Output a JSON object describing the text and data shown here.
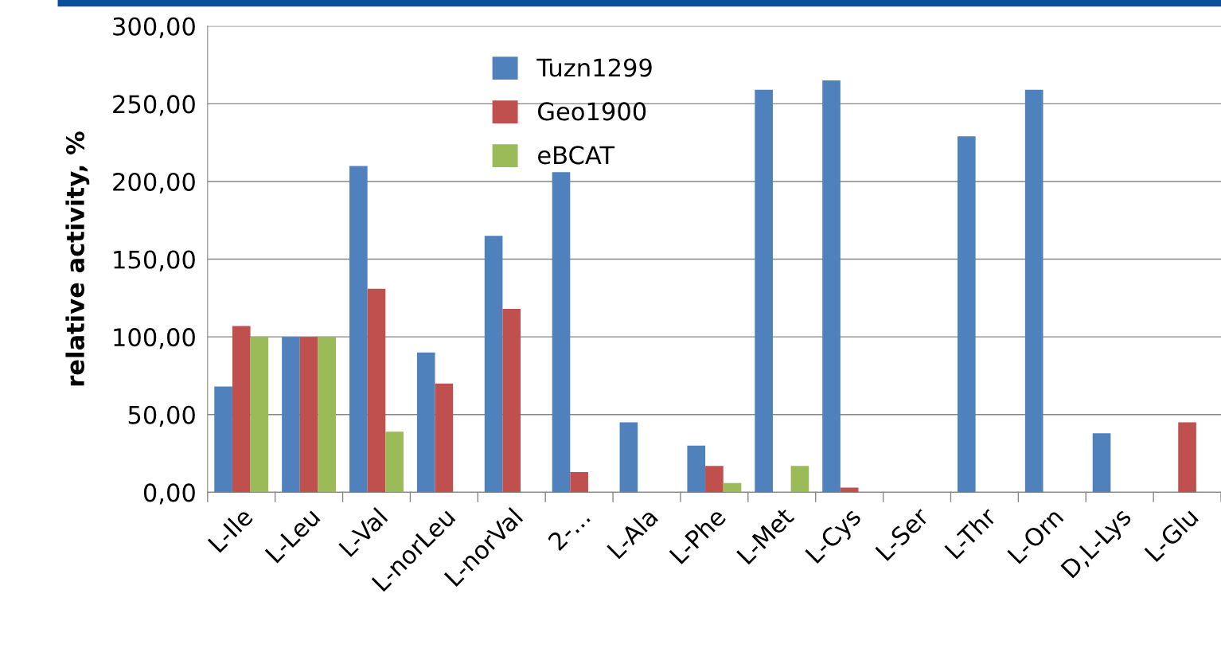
{
  "chart_data": {
    "type": "bar",
    "ylabel": "relative activity, %",
    "categories": [
      "L-Ile",
      "L-Leu",
      "L-Val",
      "L-norLeu",
      "L-norVal",
      "2-...",
      "L-Ala",
      "L-Phe",
      "L-Met",
      "L-Cys",
      "L-Ser",
      "L-Thr",
      "L-Orn",
      "D,L-Lys",
      "L-Glu"
    ],
    "series": [
      {
        "name": "Tuzn1299",
        "color": "#4f81bd",
        "values": [
          68,
          100,
          210,
          90,
          165,
          206,
          45,
          30,
          259,
          265,
          0,
          229,
          259,
          38,
          0
        ]
      },
      {
        "name": "Geo1900",
        "color": "#c0504d",
        "values": [
          107,
          100,
          131,
          70,
          118,
          13,
          0,
          17,
          0,
          3,
          0,
          0,
          0,
          0,
          45
        ]
      },
      {
        "name": "eBCAT",
        "color": "#9bbb59",
        "values": [
          100,
          100,
          39,
          0,
          0,
          0,
          0,
          6,
          17,
          0,
          0,
          0,
          0,
          0,
          0
        ]
      }
    ],
    "ylim": [
      0,
      300
    ],
    "yticks": [
      {
        "value": 0,
        "label": "0,00"
      },
      {
        "value": 50,
        "label": "50,00"
      },
      {
        "value": 100,
        "label": "100,00"
      },
      {
        "value": 150,
        "label": "150,00"
      },
      {
        "value": 200,
        "label": "200,00"
      },
      {
        "value": 250,
        "label": "250,00"
      },
      {
        "value": 300,
        "label": "300,00"
      }
    ],
    "grid": "y",
    "legend": "top left"
  }
}
